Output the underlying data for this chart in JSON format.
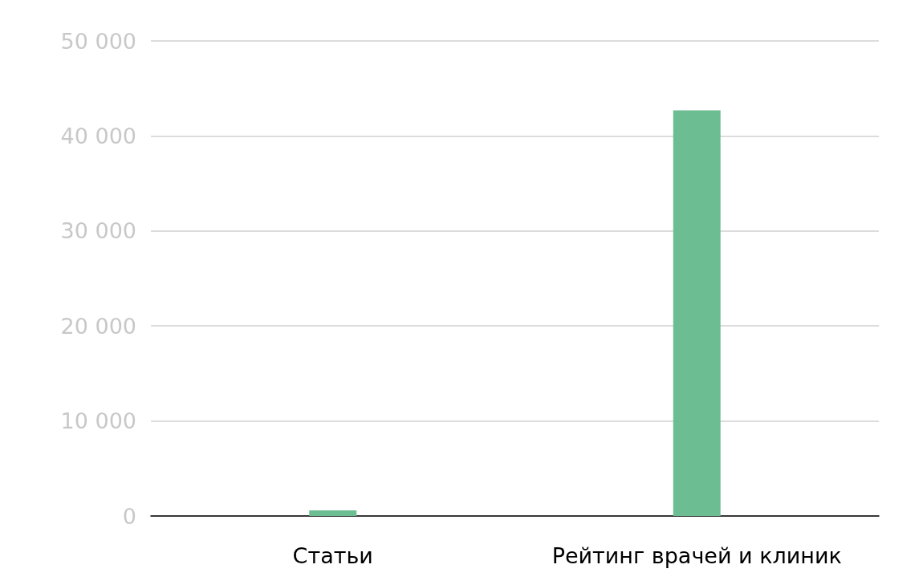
{
  "chart_data": {
    "type": "bar",
    "categories": [
      "Статьи",
      "Рейтинг врачей и клиник"
    ],
    "values": [
      600,
      42700
    ],
    "color": "#6dbd92",
    "ylim": [
      0,
      50000
    ],
    "yticks": [
      {
        "value": 0,
        "label": "0"
      },
      {
        "value": 10000,
        "label": "10 000"
      },
      {
        "value": 20000,
        "label": "20 000"
      },
      {
        "value": 30000,
        "label": "30 000"
      },
      {
        "value": 40000,
        "label": "40 000"
      },
      {
        "value": 50000,
        "label": "50 000"
      }
    ],
    "grid": "y"
  }
}
